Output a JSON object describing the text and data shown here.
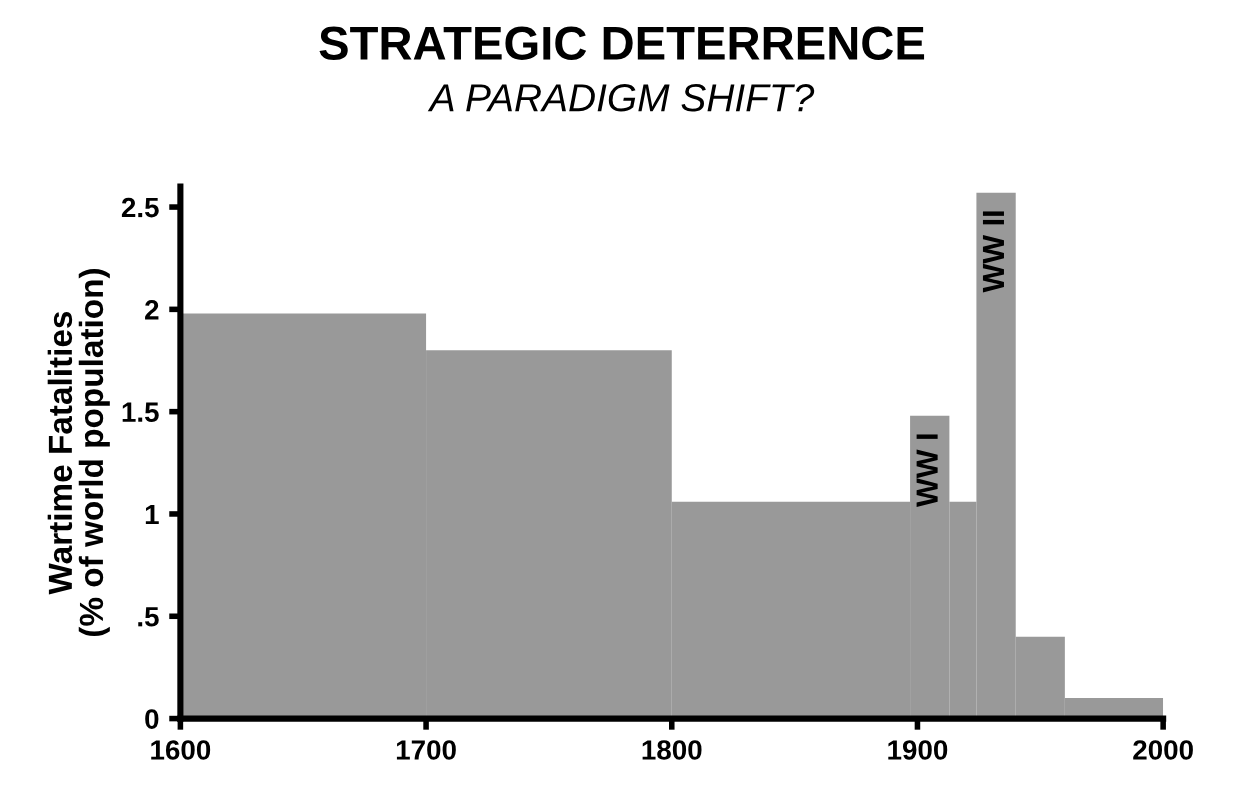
{
  "chart_data": {
    "type": "histogram",
    "title": "STRATEGIC DETERRENCE",
    "subtitle": "A PARADIGM SHIFT?",
    "ylabel": "Wartime Fatalities\n(% of world population)",
    "bins": [
      1600,
      1700,
      1800,
      1897,
      1913,
      1924,
      1940,
      1960,
      2000
    ],
    "values": [
      1.98,
      1.8,
      1.06,
      1.48,
      1.06,
      2.57,
      0.4,
      0.1
    ],
    "color": "#999999",
    "xlim": [
      1600,
      2000
    ],
    "xticks": [
      1600,
      1700,
      1800,
      1900,
      2000
    ],
    "ylim": [
      0,
      2.6
    ],
    "yticks": [
      0,
      {
        "value": 0.5,
        "label": ".5"
      },
      1,
      1.5,
      2,
      2.5
    ],
    "grid": false,
    "annotations": [
      "WW I",
      "WW II"
    ]
  }
}
